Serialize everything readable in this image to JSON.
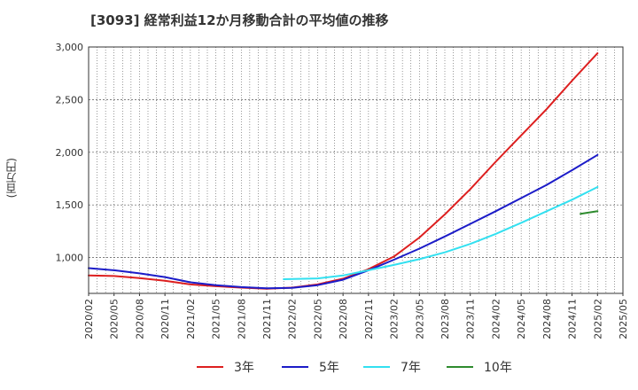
{
  "chart_data": {
    "type": "line",
    "title": "[3093]  経常利益12か月移動合計の平均値の推移",
    "ylabel": "(百万円)",
    "xlabel": "",
    "ylim": [
      660,
      3000
    ],
    "yticks": [
      1000,
      1500,
      2000,
      2500,
      3000
    ],
    "ytick_labels": [
      "1,000",
      "1,500",
      "2,000",
      "2,500",
      "3,000"
    ],
    "x_range": [
      "2020/02",
      "2025/05"
    ],
    "xtick_labels": [
      "2020/02",
      "2020/05",
      "2020/08",
      "2020/11",
      "2021/02",
      "2021/05",
      "2021/08",
      "2021/11",
      "2022/02",
      "2022/05",
      "2022/08",
      "2022/11",
      "2023/02",
      "2023/05",
      "2023/08",
      "2023/11",
      "2024/02",
      "2024/05",
      "2024/08",
      "2024/11",
      "2025/02",
      "2025/05"
    ],
    "grid": true,
    "legend_position": "bottom",
    "series": [
      {
        "name": "3年",
        "color": "#dd1f1f",
        "points": [
          [
            "2020/02",
            830
          ],
          [
            "2020/05",
            825
          ],
          [
            "2020/08",
            805
          ],
          [
            "2020/11",
            780
          ],
          [
            "2021/02",
            745
          ],
          [
            "2021/05",
            728
          ],
          [
            "2021/08",
            715
          ],
          [
            "2021/11",
            705
          ],
          [
            "2022/02",
            715
          ],
          [
            "2022/05",
            745
          ],
          [
            "2022/08",
            800
          ],
          [
            "2022/11",
            890
          ],
          [
            "2023/02",
            1010
          ],
          [
            "2023/05",
            1190
          ],
          [
            "2023/08",
            1410
          ],
          [
            "2023/11",
            1650
          ],
          [
            "2024/02",
            1910
          ],
          [
            "2024/05",
            2160
          ],
          [
            "2024/08",
            2410
          ],
          [
            "2024/11",
            2680
          ],
          [
            "2025/02",
            2940
          ]
        ]
      },
      {
        "name": "5年",
        "color": "#1c1cc8",
        "points": [
          [
            "2020/02",
            900
          ],
          [
            "2020/05",
            880
          ],
          [
            "2020/08",
            850
          ],
          [
            "2020/11",
            815
          ],
          [
            "2021/02",
            765
          ],
          [
            "2021/05",
            738
          ],
          [
            "2021/08",
            720
          ],
          [
            "2021/11",
            708
          ],
          [
            "2022/02",
            712
          ],
          [
            "2022/05",
            738
          ],
          [
            "2022/08",
            790
          ],
          [
            "2022/11",
            880
          ],
          [
            "2023/02",
            980
          ],
          [
            "2023/05",
            1085
          ],
          [
            "2023/08",
            1200
          ],
          [
            "2023/11",
            1320
          ],
          [
            "2024/02",
            1440
          ],
          [
            "2024/05",
            1565
          ],
          [
            "2024/08",
            1690
          ],
          [
            "2024/11",
            1830
          ],
          [
            "2025/02",
            1975
          ]
        ]
      },
      {
        "name": "7年",
        "color": "#33e0f0",
        "points": [
          [
            "2022/01",
            795
          ],
          [
            "2022/05",
            802
          ],
          [
            "2022/08",
            830
          ],
          [
            "2022/11",
            880
          ],
          [
            "2023/02",
            930
          ],
          [
            "2023/05",
            985
          ],
          [
            "2023/08",
            1050
          ],
          [
            "2023/11",
            1130
          ],
          [
            "2024/02",
            1225
          ],
          [
            "2024/05",
            1330
          ],
          [
            "2024/08",
            1440
          ],
          [
            "2024/11",
            1550
          ],
          [
            "2025/02",
            1670
          ]
        ]
      },
      {
        "name": "10年",
        "color": "#2e8b2e",
        "points": [
          [
            "2024/12",
            1415
          ],
          [
            "2025/02",
            1440
          ]
        ]
      }
    ]
  }
}
